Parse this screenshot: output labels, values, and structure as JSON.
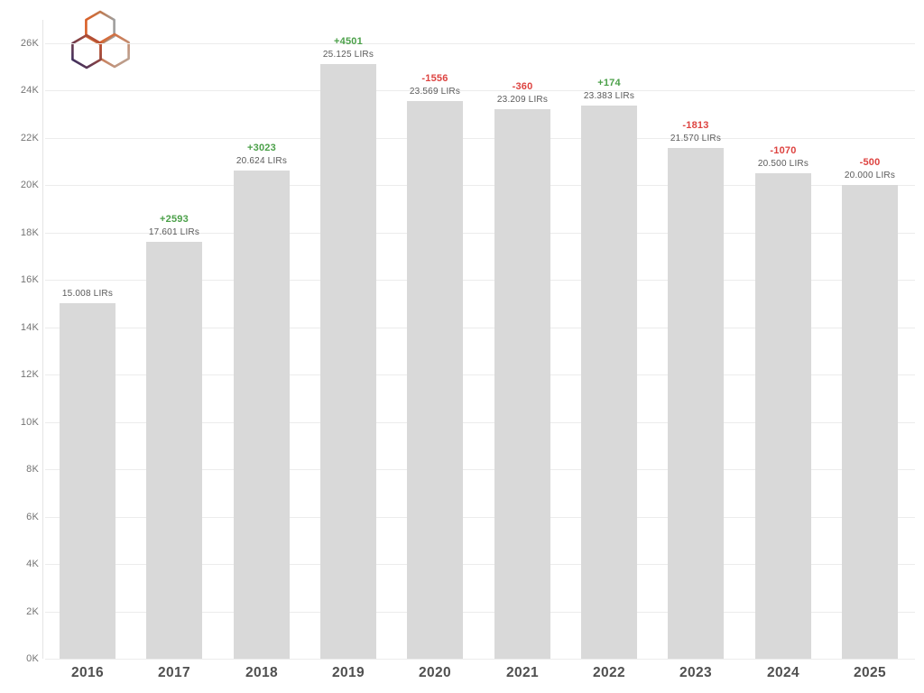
{
  "logo": {
    "name": "ripe-ncc-logo"
  },
  "chart_data": {
    "type": "bar",
    "title": "",
    "xlabel": "",
    "ylabel": "",
    "unit": "LIRs",
    "categories": [
      "2016",
      "2017",
      "2018",
      "2019",
      "2020",
      "2021",
      "2022",
      "2023",
      "2024",
      "2025"
    ],
    "values": [
      15008,
      17601,
      20624,
      25125,
      23569,
      23209,
      23383,
      21570,
      20500,
      20000
    ],
    "value_labels": [
      "15.008 LIRs",
      "17.601 LIRs",
      "20.624 LIRs",
      "25.125 LIRs",
      "23.569 LIRs",
      "23.209 LIRs",
      "23.383 LIRs",
      "21.570 LIRs",
      "20.500 LIRs",
      "20.000 LIRs"
    ],
    "delta_labels": [
      null,
      "+2593",
      "+3023",
      "+4501",
      "-1556",
      "-360",
      "+174",
      "-1813",
      "-1070",
      "-500"
    ],
    "delta_signs": [
      null,
      "pos",
      "pos",
      "pos",
      "neg",
      "neg",
      "pos",
      "neg",
      "neg",
      "neg"
    ],
    "y_ticks": [
      "0K",
      "2K",
      "4K",
      "6K",
      "8K",
      "10K",
      "12K",
      "14K",
      "16K",
      "18K",
      "20K",
      "22K",
      "24K",
      "26K"
    ],
    "ylim": [
      0,
      26000
    ],
    "grid": true,
    "legend": "none",
    "colors": {
      "bar": "#d9d9d9",
      "positive": "#4ba049",
      "negative": "#dd4340",
      "value_label": "#5a5a5a",
      "axis_tick_label": "#747474",
      "category_label": "#4f4f4f",
      "gridline": "#ececec",
      "logo_orange": "#d95f27",
      "logo_gray": "#9e9e9e",
      "logo_navy": "#2d2a64"
    }
  }
}
